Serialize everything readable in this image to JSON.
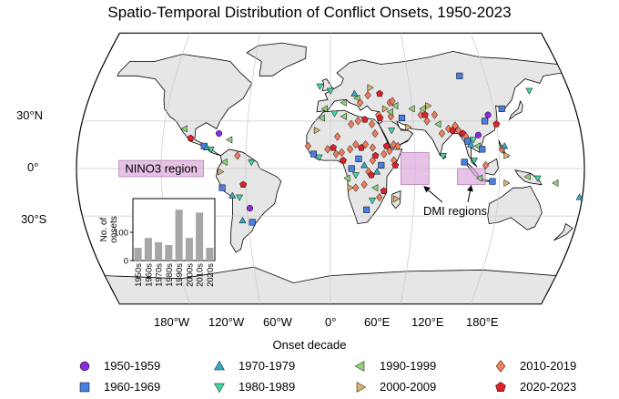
{
  "title": "Spatio-Temporal Distribution of Conflict Onsets, 1950-2023",
  "map": {
    "projection": "Robinson",
    "lat_labels": [
      "30°N",
      "0°",
      "30°S"
    ],
    "lon_labels": [
      "180°W",
      "120°W",
      "60°W",
      "0°",
      "60°E",
      "120°E",
      "180°E"
    ],
    "regions": [
      {
        "name": "NINO3 region",
        "lat": [
          -5,
          5
        ],
        "lon": [
          -150,
          -90
        ]
      },
      {
        "name": "DMI regions",
        "lat": [
          -10,
          10
        ],
        "lon": [
          50,
          70
        ]
      },
      {
        "name": "DMI regions",
        "lat": [
          -10,
          0
        ],
        "lon": [
          90,
          110
        ]
      }
    ],
    "region_fill": "#d9a3d9",
    "ocean_color": "#ffffff",
    "land_color": "#e6e6e6"
  },
  "legend": {
    "title": "Onset decade",
    "items": [
      {
        "label": "1950-1959",
        "marker": "circle",
        "color": "#8a2be2"
      },
      {
        "label": "1960-1969",
        "marker": "square",
        "color": "#4a7fe0"
      },
      {
        "label": "1970-1979",
        "marker": "triangle-up",
        "color": "#39a7c9"
      },
      {
        "label": "1980-1989",
        "marker": "triangle-down",
        "color": "#45d4a8"
      },
      {
        "label": "1990-1999",
        "marker": "triangle-left",
        "color": "#8fd478"
      },
      {
        "label": "2000-2009",
        "marker": "triangle-right",
        "color": "#d9b26a"
      },
      {
        "label": "2010-2019",
        "marker": "diamond",
        "color": "#ef7d5c"
      },
      {
        "label": "2020-2023",
        "marker": "pentagon",
        "color": "#e0202a"
      }
    ]
  },
  "chart_data": {
    "type": "bar",
    "categories": [
      "1950s",
      "1960s",
      "1970s",
      "1980s",
      "1990s",
      "2000s",
      "2010s",
      "2020s"
    ],
    "values": [
      45,
      80,
      65,
      55,
      180,
      80,
      170,
      45
    ],
    "ylabel": "No. of onsets",
    "yticks": [
      0,
      100
    ],
    "ylim": [
      0,
      200
    ],
    "bar_color": "#a6a6a6"
  },
  "markers": [
    {
      "lon": -100,
      "lat": 19,
      "d": 7
    },
    {
      "lon": -90,
      "lat": 14,
      "d": 1
    },
    {
      "lon": -88,
      "lat": 13,
      "d": 2
    },
    {
      "lon": -85,
      "lat": 12,
      "d": 3
    },
    {
      "lon": -75,
      "lat": 4,
      "d": 4
    },
    {
      "lon": -78,
      "lat": -2,
      "d": 5
    },
    {
      "lon": -77,
      "lat": -12,
      "d": 1
    },
    {
      "lon": -70,
      "lat": -17,
      "d": 2
    },
    {
      "lon": -65,
      "lat": -18,
      "d": 3
    },
    {
      "lon": -58,
      "lat": -25,
      "d": 0
    },
    {
      "lon": -66,
      "lat": 8,
      "d": 6
    },
    {
      "lon": -72,
      "lat": 18,
      "d": 4
    },
    {
      "lon": -80,
      "lat": 22,
      "d": 0
    },
    {
      "lon": -64,
      "lat": -33,
      "d": 2
    },
    {
      "lon": -57,
      "lat": -34,
      "d": 1
    },
    {
      "lon": -105,
      "lat": 25,
      "d": 4
    },
    {
      "lon": -56,
      "lat": 4,
      "d": 3
    },
    {
      "lon": -62,
      "lat": -10,
      "d": 7
    },
    {
      "lon": 100,
      "lat": 60,
      "d": 1
    },
    {
      "lon": 150,
      "lat": 50,
      "d": 3
    },
    {
      "lon": 0,
      "lat": 50,
      "d": 3
    },
    {
      "lon": 10,
      "lat": 42,
      "d": 4
    },
    {
      "lon": 20,
      "lat": 45,
      "d": 4
    },
    {
      "lon": 22,
      "lat": 42,
      "d": 6
    },
    {
      "lon": 28,
      "lat": 47,
      "d": 6
    },
    {
      "lon": 37,
      "lat": 48,
      "d": 7
    },
    {
      "lon": 30,
      "lat": 52,
      "d": 5
    },
    {
      "lon": 18,
      "lat": 48,
      "d": 2
    },
    {
      "lon": -8,
      "lat": 53,
      "d": 3
    },
    {
      "lon": -4,
      "lat": 38,
      "d": 4
    },
    {
      "lon": 44,
      "lat": 42,
      "d": 6
    },
    {
      "lon": 48,
      "lat": 40,
      "d": 4
    },
    {
      "lon": 46,
      "lat": 43,
      "d": 6
    },
    {
      "lon": 40,
      "lat": 38,
      "d": 5
    },
    {
      "lon": 35,
      "lat": 34,
      "d": 6
    },
    {
      "lon": 36,
      "lat": 32,
      "d": 7
    },
    {
      "lon": 44,
      "lat": 33,
      "d": 6
    },
    {
      "lon": 44,
      "lat": 36,
      "d": 4
    },
    {
      "lon": 52,
      "lat": 32,
      "d": 1
    },
    {
      "lon": 45,
      "lat": 15,
      "d": 6
    },
    {
      "lon": 48,
      "lat": 14,
      "d": 6
    },
    {
      "lon": 44,
      "lat": 24,
      "d": 3
    },
    {
      "lon": 56,
      "lat": 26,
      "d": 5
    },
    {
      "lon": 60,
      "lat": 38,
      "d": 4
    },
    {
      "lon": 66,
      "lat": 34,
      "d": 6
    },
    {
      "lon": 69,
      "lat": 34,
      "d": 7
    },
    {
      "lon": 70,
      "lat": 30,
      "d": 6
    },
    {
      "lon": 68,
      "lat": 38,
      "d": 4
    },
    {
      "lon": 72,
      "lat": 40,
      "d": 5
    },
    {
      "lon": 76,
      "lat": 34,
      "d": 6
    },
    {
      "lon": 78,
      "lat": 28,
      "d": 4
    },
    {
      "lon": 80,
      "lat": 22,
      "d": 6
    },
    {
      "lon": 85,
      "lat": 25,
      "d": 6
    },
    {
      "lon": 88,
      "lat": 24,
      "d": 7
    },
    {
      "lon": 90,
      "lat": 27,
      "d": 6
    },
    {
      "lon": 92,
      "lat": 24,
      "d": 6
    },
    {
      "lon": 80,
      "lat": 8,
      "d": 3
    },
    {
      "lon": 95,
      "lat": 22,
      "d": 7
    },
    {
      "lon": 97,
      "lat": 20,
      "d": 6
    },
    {
      "lon": 98,
      "lat": 17,
      "d": 1
    },
    {
      "lon": 100,
      "lat": 15,
      "d": 2
    },
    {
      "lon": 102,
      "lat": 18,
      "d": 3
    },
    {
      "lon": 105,
      "lat": 14,
      "d": 4
    },
    {
      "lon": 106,
      "lat": 21,
      "d": 0
    },
    {
      "lon": 108,
      "lat": 12,
      "d": 1
    },
    {
      "lon": 102,
      "lat": 5,
      "d": 3
    },
    {
      "lon": 110,
      "lat": 2,
      "d": 6
    },
    {
      "lon": 115,
      "lat": 34,
      "d": 0
    },
    {
      "lon": 112,
      "lat": 30,
      "d": 1
    },
    {
      "lon": 120,
      "lat": 28,
      "d": 7
    },
    {
      "lon": 126,
      "lat": 38,
      "d": 1
    },
    {
      "lon": 125,
      "lat": 8,
      "d": 5
    },
    {
      "lon": 122,
      "lat": 12,
      "d": 6
    },
    {
      "lon": 124,
      "lat": 14,
      "d": 2
    },
    {
      "lon": 95,
      "lat": 4,
      "d": 1
    },
    {
      "lon": 106,
      "lat": -6,
      "d": 4
    },
    {
      "lon": 115,
      "lat": -8,
      "d": 1
    },
    {
      "lon": 125,
      "lat": -9,
      "d": 5
    },
    {
      "lon": 140,
      "lat": -5,
      "d": 4
    },
    {
      "lon": 147,
      "lat": -6,
      "d": 3
    },
    {
      "lon": 160,
      "lat": -9,
      "d": 4
    },
    {
      "lon": 178,
      "lat": -18,
      "d": 2
    },
    {
      "lon": -16,
      "lat": 14,
      "d": 6
    },
    {
      "lon": -12,
      "lat": 9,
      "d": 1
    },
    {
      "lon": -8,
      "lat": 7,
      "d": 3
    },
    {
      "lon": -2,
      "lat": 12,
      "d": 6
    },
    {
      "lon": 2,
      "lat": 13,
      "d": 7
    },
    {
      "lon": 8,
      "lat": 10,
      "d": 6
    },
    {
      "lon": 4,
      "lat": 9,
      "d": 6
    },
    {
      "lon": 9,
      "lat": 5,
      "d": 7
    },
    {
      "lon": 14,
      "lat": 12,
      "d": 6
    },
    {
      "lon": 18,
      "lat": 15,
      "d": 6
    },
    {
      "lon": 22,
      "lat": 13,
      "d": 7
    },
    {
      "lon": 25,
      "lat": 15,
      "d": 6
    },
    {
      "lon": 30,
      "lat": 13,
      "d": 6
    },
    {
      "lon": 32,
      "lat": 8,
      "d": 7
    },
    {
      "lon": 30,
      "lat": 5,
      "d": 6
    },
    {
      "lon": 20,
      "lat": 6,
      "d": 1
    },
    {
      "lon": 24,
      "lat": 2,
      "d": 2
    },
    {
      "lon": 27,
      "lat": -2,
      "d": 6
    },
    {
      "lon": 29,
      "lat": -4,
      "d": 7
    },
    {
      "lon": 18,
      "lat": -4,
      "d": 3
    },
    {
      "lon": 15,
      "lat": 0,
      "d": 1
    },
    {
      "lon": 12,
      "lat": -6,
      "d": 4
    },
    {
      "lon": 14,
      "lat": -12,
      "d": 5
    },
    {
      "lon": 18,
      "lat": -12,
      "d": 6
    },
    {
      "lon": 24,
      "lat": -10,
      "d": 6
    },
    {
      "lon": 38,
      "lat": 9,
      "d": 6
    },
    {
      "lon": 40,
      "lat": 14,
      "d": 7
    },
    {
      "lon": 42,
      "lat": 11,
      "d": 6
    },
    {
      "lon": 45,
      "lat": 5,
      "d": 6
    },
    {
      "lon": 46,
      "lat": 2,
      "d": 7
    },
    {
      "lon": 36,
      "lat": 2,
      "d": 1
    },
    {
      "lon": 33,
      "lat": -2,
      "d": 2
    },
    {
      "lon": 32,
      "lat": -12,
      "d": 4
    },
    {
      "lon": 35,
      "lat": -18,
      "d": 6
    },
    {
      "lon": 38,
      "lat": -14,
      "d": 7
    },
    {
      "lon": 30,
      "lat": -20,
      "d": 3
    },
    {
      "lon": 26,
      "lat": -26,
      "d": 1
    },
    {
      "lon": 47,
      "lat": -19,
      "d": 5
    },
    {
      "lon": 10,
      "lat": 33,
      "d": 4
    },
    {
      "lon": 3,
      "lat": 35,
      "d": 3
    },
    {
      "lon": 20,
      "lat": 30,
      "d": 6
    },
    {
      "lon": 25,
      "lat": 31,
      "d": 7
    },
    {
      "lon": 15,
      "lat": 28,
      "d": 6
    },
    {
      "lon": 30,
      "lat": 28,
      "d": 6
    },
    {
      "lon": 32,
      "lat": 22,
      "d": 6
    },
    {
      "lon": -6,
      "lat": 32,
      "d": 4
    },
    {
      "lon": -10,
      "lat": 24,
      "d": 5
    },
    {
      "lon": 5,
      "lat": 20,
      "d": 6
    }
  ]
}
